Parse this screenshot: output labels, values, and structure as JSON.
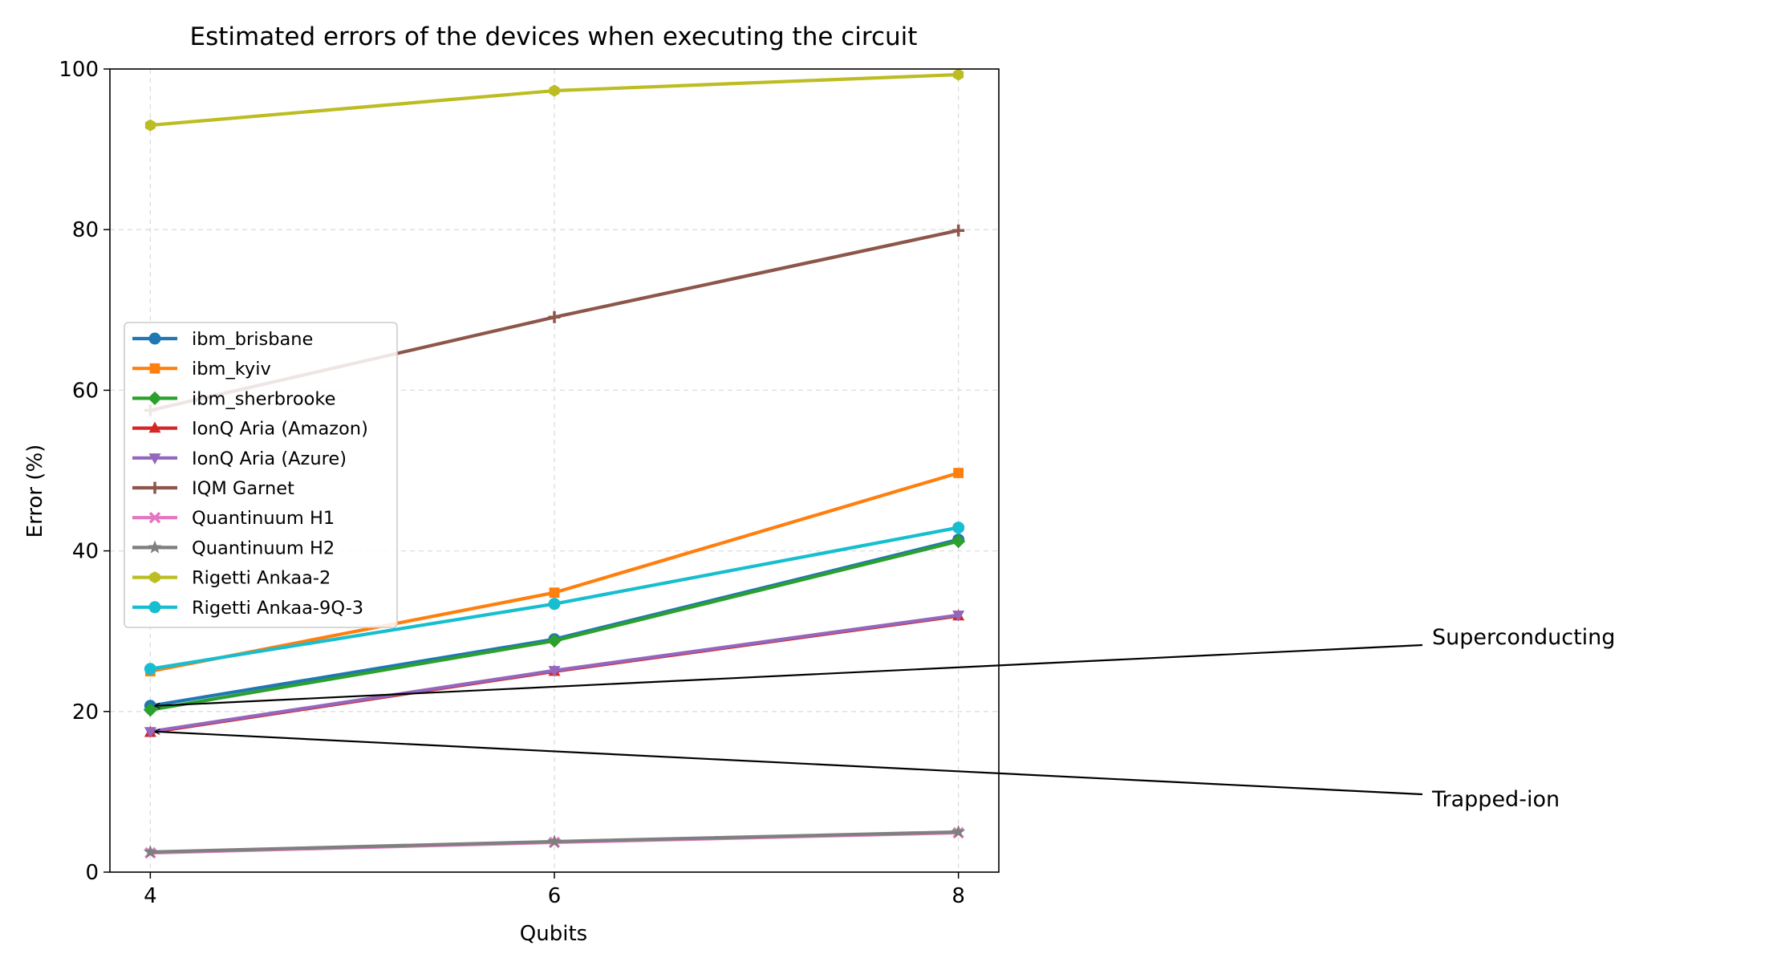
{
  "chart_data": {
    "type": "line",
    "title": "Estimated errors of the devices when executing the circuit",
    "xlabel": "Qubits",
    "ylabel": "Error (%)",
    "x": [
      4,
      6,
      8
    ],
    "xlim": [
      3.8,
      8.2
    ],
    "ylim": [
      0,
      100
    ],
    "xticks": [
      "4",
      "6",
      "8"
    ],
    "yticks": [
      "0",
      "20",
      "40",
      "60",
      "80",
      "100"
    ],
    "grid": true,
    "legend_position": "center-left",
    "series": [
      {
        "name": "ibm_brisbane",
        "values": [
          20.7,
          29.0,
          41.4
        ],
        "color": "#1f77b4",
        "marker": "circle"
      },
      {
        "name": "ibm_kyiv",
        "values": [
          25.0,
          34.8,
          49.7
        ],
        "color": "#ff7f0e",
        "marker": "square"
      },
      {
        "name": "ibm_sherbrooke",
        "values": [
          20.2,
          28.8,
          41.2
        ],
        "color": "#2ca02c",
        "marker": "diamond"
      },
      {
        "name": "IonQ Aria (Amazon)",
        "values": [
          17.4,
          25.0,
          31.9
        ],
        "color": "#d62728",
        "marker": "triangle-up"
      },
      {
        "name": "IonQ Aria (Azure)",
        "values": [
          17.5,
          25.1,
          32.0
        ],
        "color": "#9467bd",
        "marker": "triangle-down"
      },
      {
        "name": "IQM Garnet",
        "values": [
          57.5,
          69.1,
          79.9
        ],
        "color": "#8c564b",
        "marker": "plus"
      },
      {
        "name": "Quantinuum H1",
        "values": [
          2.4,
          3.7,
          4.9
        ],
        "color": "#e377c2",
        "marker": "x"
      },
      {
        "name": "Quantinuum H2",
        "values": [
          2.5,
          3.8,
          5.0
        ],
        "color": "#7f7f7f",
        "marker": "star"
      },
      {
        "name": "Rigetti Ankaa-2",
        "values": [
          93.0,
          97.3,
          99.3
        ],
        "color": "#bcbd22",
        "marker": "hexagon"
      },
      {
        "name": "Rigetti Ankaa-9Q-3",
        "values": [
          25.3,
          33.4,
          42.9
        ],
        "color": "#17becf",
        "marker": "circle"
      }
    ],
    "annotations": [
      {
        "text": "Superconducting",
        "target": {
          "x": 4,
          "y": 20.7
        }
      },
      {
        "text": "Trapped-ion",
        "target": {
          "x": 4,
          "y": 17.5
        }
      }
    ]
  }
}
